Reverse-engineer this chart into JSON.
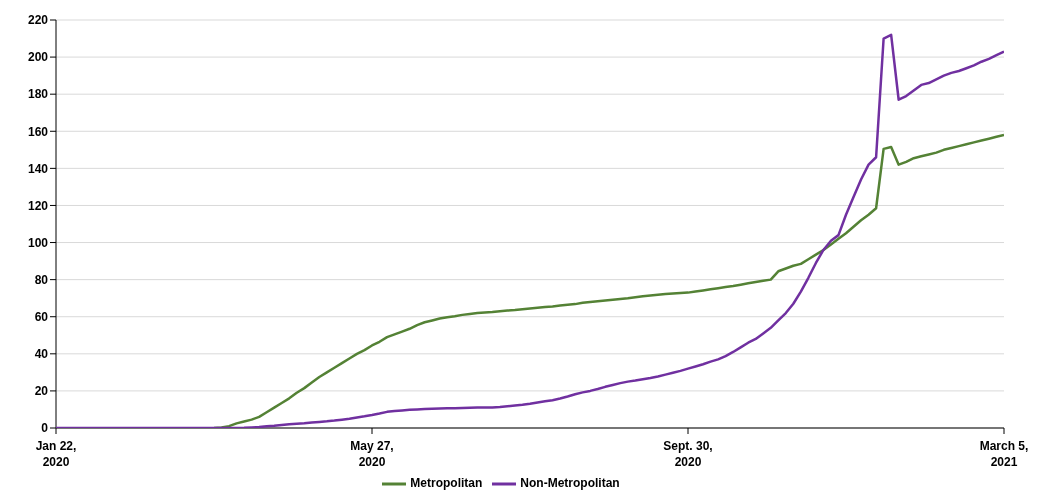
{
  "chart_data": {
    "type": "line",
    "categories": [
      "Jan 22, 2020",
      null,
      null,
      null,
      null,
      null,
      null,
      null,
      null,
      null,
      null,
      null,
      null,
      null,
      null,
      null,
      null,
      null,
      null,
      null,
      null,
      null,
      null,
      null,
      null,
      null,
      null,
      null,
      null,
      null,
      null,
      null,
      null,
      null,
      null,
      null,
      null,
      null,
      null,
      null,
      null,
      null,
      "May 27, 2020",
      null,
      null,
      null,
      null,
      null,
      null,
      null,
      null,
      null,
      null,
      null,
      null,
      null,
      null,
      null,
      null,
      null,
      null,
      null,
      null,
      null,
      null,
      null,
      null,
      null,
      null,
      null,
      null,
      null,
      null,
      null,
      null,
      null,
      null,
      null,
      null,
      null,
      null,
      null,
      null,
      null,
      "Sept. 30, 2020",
      null,
      null,
      null,
      null,
      null,
      null,
      null,
      null,
      null,
      null,
      null,
      null,
      null,
      null,
      null,
      null,
      null,
      null,
      null,
      null,
      null,
      null,
      null,
      null,
      null,
      null,
      null,
      null,
      null,
      null,
      null,
      null,
      null,
      null,
      null,
      null,
      null,
      null,
      null,
      null,
      null,
      "March 5, 2021"
    ],
    "ylim": [
      0,
      220
    ],
    "yticks": [
      0,
      20,
      40,
      60,
      80,
      100,
      120,
      140,
      160,
      180,
      200,
      220
    ],
    "grid": "y",
    "legend": "bottom",
    "marker": "none",
    "line_style": "solid",
    "series": [
      {
        "name": "Metropolitan",
        "color": "#548235",
        "values": [
          null,
          null,
          null,
          null,
          null,
          null,
          null,
          null,
          null,
          null,
          null,
          null,
          null,
          null,
          null,
          null,
          null,
          null,
          null,
          null,
          null,
          0,
          0.3,
          1,
          2.5,
          3.5,
          4.5,
          6,
          8.5,
          11,
          13.5,
          16,
          19,
          21.5,
          24.5,
          27.5,
          30,
          32.5,
          35,
          37.5,
          40,
          42,
          44.5,
          46.5,
          49,
          50.5,
          52,
          53.5,
          55.5,
          57,
          58,
          59,
          59.7,
          60.3,
          61,
          61.5,
          62,
          62.3,
          62.5,
          63,
          63.3,
          63.6,
          64,
          64.4,
          64.8,
          65.2,
          65.5,
          66,
          66.4,
          66.8,
          67.5,
          68,
          68.4,
          68.8,
          69.2,
          69.6,
          70,
          70.5,
          71,
          71.4,
          71.8,
          72.2,
          72.5,
          72.8,
          73,
          73.6,
          74.2,
          74.8,
          75.4,
          76,
          76.6,
          77.3,
          78,
          78.7,
          79.4,
          80,
          84.5,
          86,
          87.5,
          88.5,
          91,
          93.5,
          96,
          99,
          102,
          105,
          108.5,
          112,
          115,
          118.5,
          150.5,
          151.5,
          142,
          143.5,
          145.5,
          146.5,
          147.5,
          148.5,
          150,
          151,
          152,
          153,
          154,
          155,
          156,
          157,
          158
        ]
      },
      {
        "name": "Non-Metropolitan",
        "color": "#7030a0",
        "values": [
          0,
          0,
          0,
          0,
          0,
          0,
          0,
          0,
          0,
          0,
          0,
          0,
          0,
          0,
          0,
          0,
          0,
          0,
          0,
          0,
          0,
          0,
          0,
          0,
          0,
          0.1,
          0.3,
          0.5,
          0.9,
          1.2,
          1.6,
          2,
          2.3,
          2.6,
          3,
          3.3,
          3.6,
          4,
          4.5,
          5,
          5.7,
          6.3,
          7,
          7.8,
          8.7,
          9.2,
          9.5,
          9.8,
          10,
          10.2,
          10.4,
          10.5,
          10.6,
          10.7,
          10.8,
          10.9,
          11,
          11,
          11,
          11.3,
          11.7,
          12.1,
          12.5,
          13.1,
          13.8,
          14.4,
          15,
          15.9,
          17,
          18.2,
          19.2,
          20,
          21,
          22.2,
          23.2,
          24.2,
          25,
          25.6,
          26.3,
          27,
          27.8,
          28.8,
          29.8,
          30.8,
          32,
          33.2,
          34.4,
          35.8,
          37,
          38.8,
          41,
          43.5,
          46,
          48,
          51,
          54,
          58,
          62,
          67,
          73.5,
          81,
          89,
          96,
          101,
          104,
          115,
          124.5,
          134,
          142,
          146,
          210,
          212,
          177,
          179,
          182,
          185,
          186,
          188,
          190,
          191.5,
          192.5,
          194,
          195.5,
          197.5,
          199,
          201,
          203
        ]
      }
    ]
  }
}
